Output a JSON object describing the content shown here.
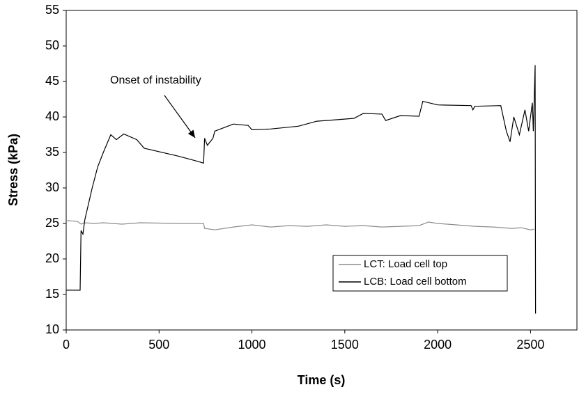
{
  "chart_data": {
    "type": "line",
    "x_label": "Time (s)",
    "y_label": "Stress (kPa)",
    "annotation": "Onset of instability",
    "xlim": [
      0,
      2750
    ],
    "xticks": [
      0,
      500,
      1000,
      1500,
      2000,
      2500
    ],
    "ylim": [
      10,
      55
    ],
    "yticks": [
      10,
      15,
      20,
      25,
      30,
      35,
      40,
      45,
      50,
      55
    ],
    "legend": "lower-right",
    "series": [
      {
        "name": "LCT: Load cell top",
        "color": "#8c8c8c",
        "x": [
          0,
          60,
          80,
          100,
          150,
          200,
          300,
          400,
          600,
          740,
          745,
          800,
          900,
          1000,
          1100,
          1200,
          1300,
          1400,
          1500,
          1600,
          1700,
          1800,
          1900,
          1950,
          2000,
          2100,
          2200,
          2300,
          2400,
          2450,
          2500,
          2520
        ],
        "values": [
          25.4,
          25.3,
          24.9,
          25.1,
          25.0,
          25.1,
          24.9,
          25.1,
          25.0,
          25.0,
          24.3,
          24.1,
          24.5,
          24.8,
          24.5,
          24.7,
          24.6,
          24.8,
          24.6,
          24.7,
          24.5,
          24.6,
          24.7,
          25.2,
          25.0,
          24.8,
          24.6,
          24.5,
          24.3,
          24.4,
          24.1,
          24.2
        ]
      },
      {
        "name": "LCB: Load cell bottom",
        "color": "#000000",
        "x": [
          0,
          75,
          80,
          90,
          100,
          140,
          170,
          200,
          240,
          270,
          310,
          380,
          420,
          600,
          700,
          740,
          745,
          760,
          790,
          800,
          850,
          900,
          980,
          1000,
          1100,
          1250,
          1350,
          1450,
          1550,
          1600,
          1700,
          1720,
          1800,
          1900,
          1920,
          2000,
          2180,
          2190,
          2200,
          2340,
          2370,
          2390,
          2410,
          2440,
          2470,
          2490,
          2510,
          2515,
          2525,
          2527
        ],
        "values": [
          15.6,
          15.6,
          24.0,
          23.5,
          25.5,
          30.0,
          33.0,
          35.0,
          37.5,
          36.8,
          37.6,
          36.8,
          35.6,
          34.5,
          33.8,
          33.5,
          37.0,
          36.0,
          37.0,
          38.0,
          38.5,
          39.0,
          38.8,
          38.2,
          38.3,
          38.7,
          39.4,
          39.6,
          39.8,
          40.5,
          40.4,
          39.5,
          40.2,
          40.1,
          42.2,
          41.7,
          41.6,
          41.0,
          41.5,
          41.6,
          38.0,
          36.5,
          40.0,
          37.5,
          41.0,
          38.0,
          42.0,
          38.0,
          47.3,
          12.3
        ]
      }
    ]
  }
}
